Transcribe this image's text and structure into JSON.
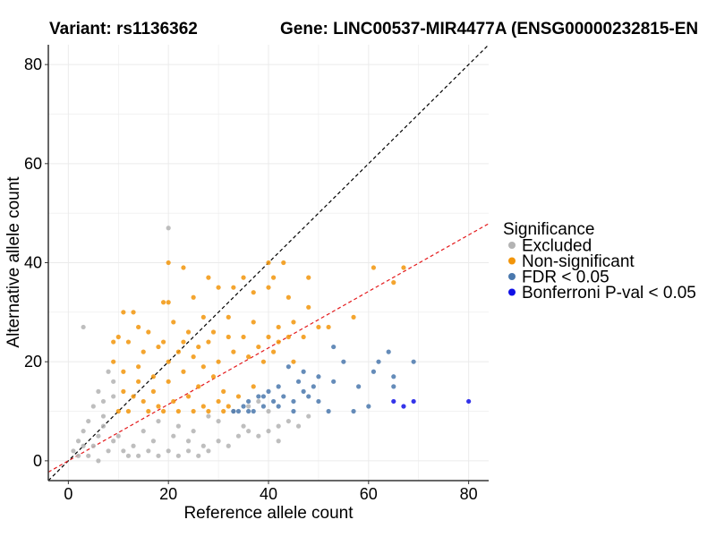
{
  "chart_data": {
    "type": "scatter",
    "title_left": "Variant: rs1136362",
    "title_right": "Gene: LINC00537-MIR4477A (ENSG00000232815-EN",
    "xlabel": "Reference allele count",
    "ylabel": "Alternative allele count",
    "xlim": [
      -4,
      84
    ],
    "ylim": [
      -4,
      84
    ],
    "x_ticks": [
      0,
      20,
      40,
      60,
      80
    ],
    "y_ticks": [
      0,
      20,
      40,
      60,
      80
    ],
    "grid": true,
    "legend": {
      "title": "Significance",
      "position": "right",
      "entries": [
        {
          "label": "Excluded",
          "color": "#b3b3b3"
        },
        {
          "label": "Non-significant",
          "color": "#f2950a"
        },
        {
          "label": "FDR < 0.05",
          "color": "#4a78ad"
        },
        {
          "label": "Bonferroni P-val < 0.05",
          "color": "#1010e6"
        }
      ]
    },
    "reference_lines": [
      {
        "name": "identity",
        "slope": 1.0,
        "intercept": 0,
        "color": "#000000",
        "dash": "dashed"
      },
      {
        "name": "expected-ratio",
        "slope": 0.57,
        "intercept": 0,
        "color": "#e41a1c",
        "dash": "dashed"
      }
    ],
    "series": [
      {
        "name": "Excluded",
        "color": "#b3b3b3",
        "points": [
          [
            3,
            27
          ],
          [
            20,
            47
          ],
          [
            2,
            4
          ],
          [
            3,
            6
          ],
          [
            5,
            3
          ],
          [
            4,
            8
          ],
          [
            6,
            5
          ],
          [
            7,
            9
          ],
          [
            8,
            2
          ],
          [
            5,
            11
          ],
          [
            6,
            14
          ],
          [
            7,
            12
          ],
          [
            9,
            16
          ],
          [
            8,
            18
          ],
          [
            9,
            13
          ],
          [
            4,
            1
          ],
          [
            6,
            0
          ],
          [
            11,
            2
          ],
          [
            12,
            1
          ],
          [
            14,
            1
          ],
          [
            16,
            2
          ],
          [
            18,
            1
          ],
          [
            20,
            2
          ],
          [
            22,
            1
          ],
          [
            24,
            2
          ],
          [
            26,
            1
          ],
          [
            28,
            2
          ],
          [
            24,
            4
          ],
          [
            30,
            4
          ],
          [
            32,
            3
          ],
          [
            34,
            5
          ],
          [
            36,
            6
          ],
          [
            38,
            5
          ],
          [
            35,
            7
          ],
          [
            40,
            6
          ],
          [
            42,
            7
          ],
          [
            44,
            8
          ],
          [
            46,
            7
          ],
          [
            48,
            9
          ],
          [
            42,
            4
          ],
          [
            10,
            5
          ],
          [
            15,
            6
          ],
          [
            18,
            8
          ],
          [
            22,
            7
          ],
          [
            25,
            6
          ],
          [
            28,
            9
          ],
          [
            30,
            8
          ],
          [
            33,
            10
          ],
          [
            36,
            11
          ],
          [
            38,
            12
          ],
          [
            40,
            10
          ],
          [
            2,
            1
          ],
          [
            1,
            2
          ],
          [
            3,
            3
          ],
          [
            7,
            7
          ],
          [
            9,
            4
          ],
          [
            13,
            3
          ],
          [
            17,
            4
          ],
          [
            21,
            5
          ],
          [
            27,
            3
          ]
        ]
      },
      {
        "name": "Non-significant",
        "color": "#f2950a",
        "points": [
          [
            20,
            40
          ],
          [
            23,
            39
          ],
          [
            28,
            37
          ],
          [
            35,
            37
          ],
          [
            40,
            40
          ],
          [
            43,
            40
          ],
          [
            48,
            37
          ],
          [
            61,
            39
          ],
          [
            65,
            36
          ],
          [
            67,
            39
          ],
          [
            19,
            32
          ],
          [
            20,
            32
          ],
          [
            25,
            33
          ],
          [
            30,
            35
          ],
          [
            33,
            35
          ],
          [
            37,
            34
          ],
          [
            40,
            35
          ],
          [
            41,
            37
          ],
          [
            44,
            33
          ],
          [
            48,
            31
          ],
          [
            52,
            27
          ],
          [
            57,
            29
          ],
          [
            13,
            30
          ],
          [
            11,
            30
          ],
          [
            14,
            27
          ],
          [
            21,
            28
          ],
          [
            27,
            29
          ],
          [
            32,
            29
          ],
          [
            37,
            28
          ],
          [
            42,
            27
          ],
          [
            45,
            28
          ],
          [
            47,
            25
          ],
          [
            50,
            27
          ],
          [
            9,
            24
          ],
          [
            10,
            25
          ],
          [
            12,
            24
          ],
          [
            15,
            22
          ],
          [
            18,
            23
          ],
          [
            24,
            26
          ],
          [
            28,
            24
          ],
          [
            33,
            22
          ],
          [
            36,
            21
          ],
          [
            39,
            20
          ],
          [
            41,
            22
          ],
          [
            45,
            20
          ],
          [
            9,
            20
          ],
          [
            11,
            18
          ],
          [
            14,
            19
          ],
          [
            17,
            17
          ],
          [
            20,
            16
          ],
          [
            23,
            18
          ],
          [
            26,
            15
          ],
          [
            29,
            17
          ],
          [
            31,
            14
          ],
          [
            34,
            13
          ],
          [
            37,
            15
          ],
          [
            11,
            14
          ],
          [
            13,
            13
          ],
          [
            15,
            12
          ],
          [
            18,
            11
          ],
          [
            21,
            12
          ],
          [
            24,
            13
          ],
          [
            27,
            11
          ],
          [
            30,
            12
          ],
          [
            32,
            11
          ],
          [
            10,
            10
          ],
          [
            12,
            10
          ],
          [
            16,
            10
          ],
          [
            19,
            10
          ],
          [
            22,
            10
          ],
          [
            25,
            10
          ],
          [
            28,
            10
          ],
          [
            31,
            10
          ],
          [
            14,
            16
          ],
          [
            17,
            14
          ],
          [
            20,
            20
          ],
          [
            22,
            22
          ],
          [
            25,
            21
          ],
          [
            27,
            19
          ],
          [
            30,
            20
          ],
          [
            16,
            26
          ],
          [
            19,
            24
          ],
          [
            23,
            24
          ],
          [
            26,
            23
          ],
          [
            29,
            26
          ],
          [
            32,
            25
          ],
          [
            35,
            25
          ],
          [
            38,
            23
          ],
          [
            40,
            25
          ],
          [
            42,
            24
          ],
          [
            44,
            25
          ]
        ]
      },
      {
        "name": "FDR < 0.05",
        "color": "#4a78ad",
        "points": [
          [
            53,
            23
          ],
          [
            55,
            20
          ],
          [
            62,
            20
          ],
          [
            64,
            22
          ],
          [
            69,
            20
          ],
          [
            61,
            18
          ],
          [
            65,
            17
          ],
          [
            58,
            15
          ],
          [
            50,
            17
          ],
          [
            53,
            16
          ],
          [
            47,
            18
          ],
          [
            44,
            19
          ],
          [
            46,
            16
          ],
          [
            42,
            15
          ],
          [
            40,
            14
          ],
          [
            38,
            13
          ],
          [
            36,
            12
          ],
          [
            35,
            11
          ],
          [
            34,
            10
          ],
          [
            37,
            10
          ],
          [
            39,
            11
          ],
          [
            41,
            12
          ],
          [
            43,
            13
          ],
          [
            45,
            12
          ],
          [
            48,
            13
          ],
          [
            50,
            12
          ],
          [
            52,
            10
          ],
          [
            57,
            10
          ],
          [
            60,
            11
          ],
          [
            65,
            15
          ],
          [
            33,
            10
          ],
          [
            36,
            10
          ],
          [
            39,
            13
          ],
          [
            42,
            11
          ],
          [
            45,
            10
          ],
          [
            47,
            14
          ],
          [
            49,
            15
          ]
        ]
      },
      {
        "name": "Bonferroni P-val < 0.05",
        "color": "#1010e6",
        "points": [
          [
            65,
            12
          ],
          [
            67,
            11
          ],
          [
            69,
            12
          ],
          [
            80,
            12
          ]
        ]
      }
    ]
  }
}
